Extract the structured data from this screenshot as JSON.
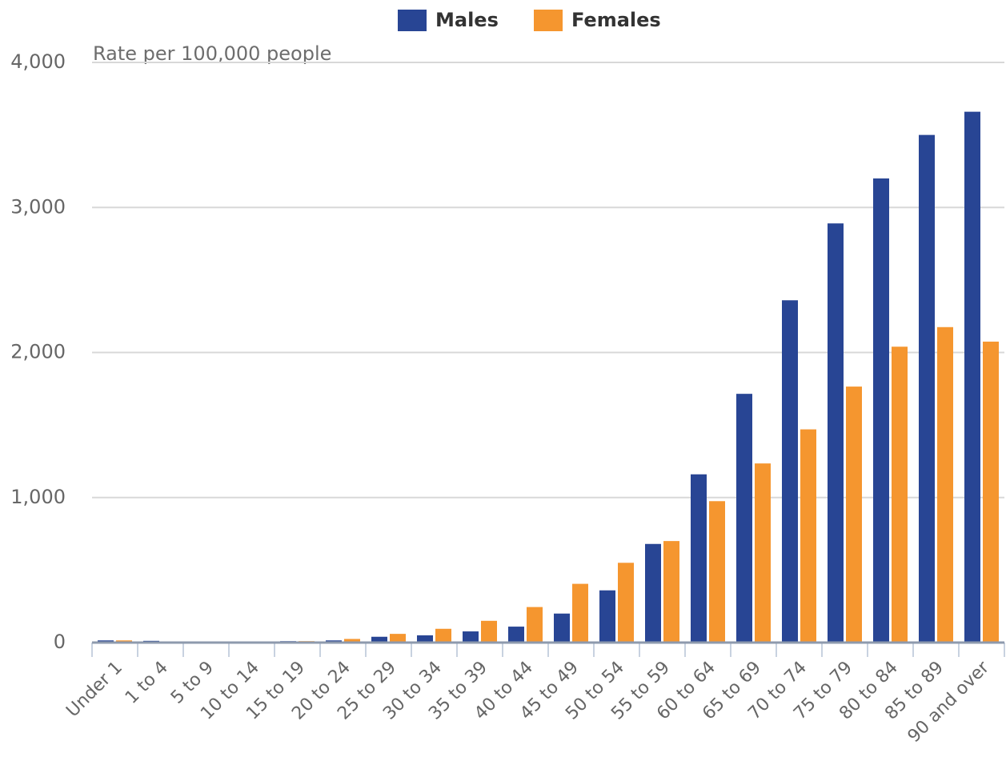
{
  "chart_data": {
    "type": "bar",
    "y_axis_label": "Rate per 100,000 people",
    "categories": [
      "Under 1",
      "1 to 4",
      "5 to 9",
      "10 to 14",
      "15 to 19",
      "20 to 24",
      "25 to 29",
      "30 to 34",
      "35 to 39",
      "40 to 44",
      "45 to 49",
      "50 to 54",
      "55 to 59",
      "60 to 64",
      "65 to 69",
      "70 to 74",
      "75 to 79",
      "80 to 84",
      "85 to 89",
      "90 and over"
    ],
    "series": [
      {
        "name": "Males",
        "color": "#284594",
        "values": [
          15,
          12,
          5,
          5,
          10,
          15,
          40,
          50,
          77,
          110,
          200,
          360,
          680,
          1160,
          1715,
          2360,
          2890,
          3200,
          3500,
          3660
        ]
      },
      {
        "name": "Females",
        "color": "#f5962f",
        "values": [
          15,
          5,
          3,
          3,
          10,
          25,
          60,
          95,
          150,
          245,
          405,
          550,
          700,
          975,
          1235,
          1470,
          1765,
          2040,
          2175,
          2075
        ]
      }
    ],
    "ylim": [
      0,
      4000
    ],
    "yticks": [
      0,
      {
        "value": 1000,
        "label": "1,000"
      },
      {
        "value": 2000,
        "label": "2,000"
      },
      {
        "value": 3000,
        "label": "3,000"
      },
      {
        "value": 4000,
        "label": "4,000"
      }
    ],
    "grid": true,
    "legend": "top"
  }
}
